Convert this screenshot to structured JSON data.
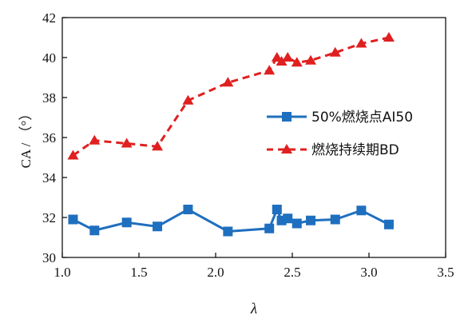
{
  "chart_data": {
    "type": "line",
    "xlabel": "λ",
    "ylabel": "CA / （°）",
    "xlim": [
      1.0,
      3.5
    ],
    "ylim": [
      30,
      42
    ],
    "xticks": [
      "1.0",
      "1.5",
      "2.0",
      "2.5",
      "3.0",
      "3.5"
    ],
    "yticks": [
      "30",
      "32",
      "34",
      "36",
      "38",
      "40",
      "42"
    ],
    "grid": false,
    "legend_position": "right",
    "series": [
      {
        "name": "50%燃烧点AI50",
        "marker": "square",
        "line": "solid",
        "color": "#1f6fbf",
        "x": [
          1.07,
          1.21,
          1.42,
          1.62,
          1.82,
          2.08,
          2.35,
          2.4,
          2.43,
          2.47,
          2.53,
          2.62,
          2.78,
          2.95,
          3.13
        ],
        "y": [
          31.9,
          31.35,
          31.75,
          31.55,
          32.4,
          31.3,
          31.45,
          32.4,
          31.85,
          31.95,
          31.7,
          31.85,
          31.9,
          32.35,
          31.65
        ]
      },
      {
        "name": "燃烧持续期BD",
        "marker": "triangle",
        "line": "dashed",
        "color": "#e02020",
        "x": [
          1.07,
          1.21,
          1.42,
          1.62,
          1.82,
          2.08,
          2.35,
          2.4,
          2.43,
          2.47,
          2.53,
          2.62,
          2.78,
          2.95,
          3.13
        ],
        "y": [
          35.1,
          35.85,
          35.7,
          35.55,
          37.85,
          38.75,
          39.35,
          40.0,
          39.8,
          40.0,
          39.75,
          39.85,
          40.25,
          40.7,
          41.0
        ]
      }
    ]
  }
}
